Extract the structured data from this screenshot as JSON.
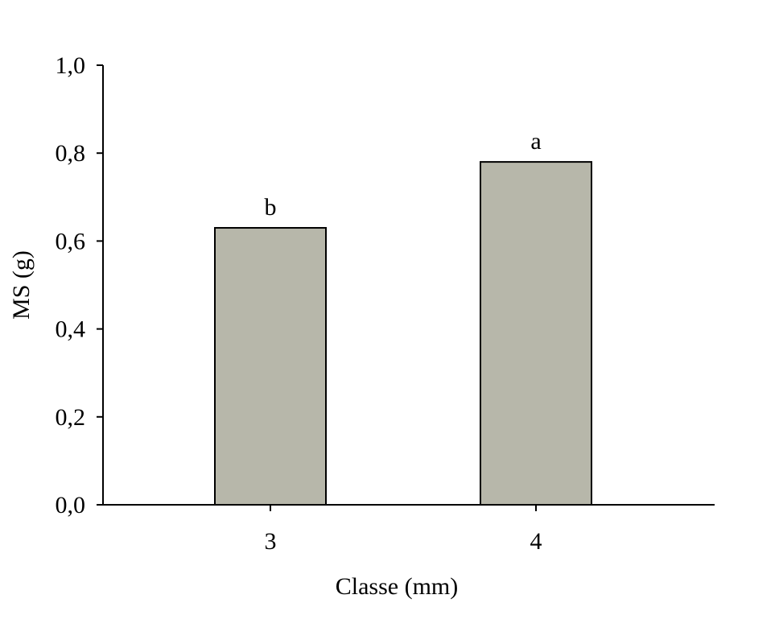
{
  "chart_data": {
    "type": "bar",
    "categories": [
      "3",
      "4"
    ],
    "values": [
      0.63,
      0.78
    ],
    "bar_labels": [
      "b",
      "a"
    ],
    "title": "",
    "xlabel": "Classe (mm)",
    "ylabel": "MS (g)",
    "ylim": [
      0,
      1.0
    ],
    "yticks": [
      "0,0",
      "0,2",
      "0,4",
      "0,6",
      "0,8",
      "1,0"
    ],
    "ytick_values": [
      0,
      0.2,
      0.4,
      0.6,
      0.8,
      1.0
    ],
    "grid": false,
    "legend": "none",
    "bar_color": "#b7b7aa",
    "bar_edge_color": "#000000"
  }
}
